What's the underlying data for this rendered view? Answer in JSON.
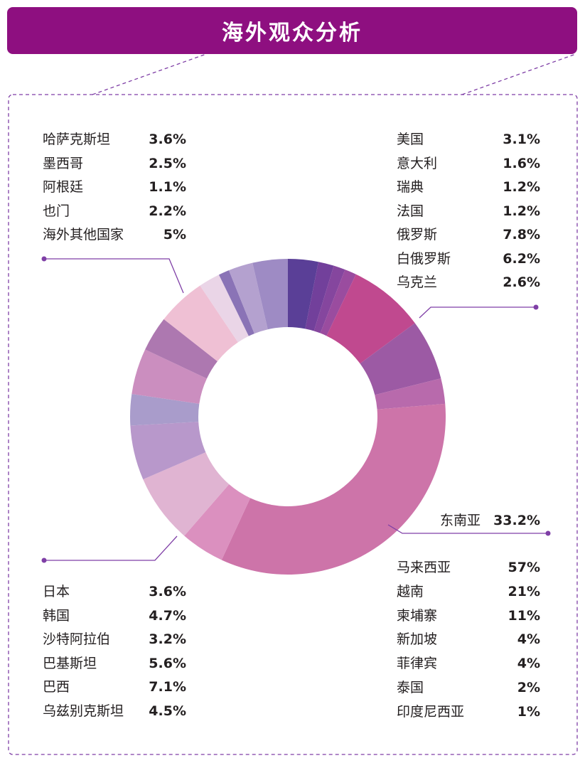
{
  "title": "海外观众分析",
  "colors": {
    "header": "#8e0f80",
    "frame": "#7f3fa6",
    "leader": "#7f3fa6"
  },
  "chart_data": {
    "type": "pie",
    "donut": true,
    "slices": [
      {
        "name": "美国",
        "value": 3.1,
        "color": "#5a3f97"
      },
      {
        "name": "意大利",
        "value": 1.6,
        "color": "#72409b"
      },
      {
        "name": "瑞典",
        "value": 1.2,
        "color": "#85469e"
      },
      {
        "name": "法国",
        "value": 1.2,
        "color": "#9a4c9f"
      },
      {
        "name": "俄罗斯",
        "value": 7.8,
        "color": "#c0498f"
      },
      {
        "name": "白俄罗斯",
        "value": 6.2,
        "color": "#9c5aa4"
      },
      {
        "name": "乌克兰",
        "value": 2.6,
        "color": "#b86aac"
      },
      {
        "name": "东南亚",
        "value": 33.2,
        "color": "#cd74a9"
      },
      {
        "name": "乌兹别克斯坦",
        "value": 4.5,
        "color": "#db90bf"
      },
      {
        "name": "巴西",
        "value": 7.1,
        "color": "#e0b4d2"
      },
      {
        "name": "巴基斯坦",
        "value": 5.6,
        "color": "#b898cb"
      },
      {
        "name": "沙特阿拉伯",
        "value": 3.2,
        "color": "#a99ccb"
      },
      {
        "name": "韩国",
        "value": 4.7,
        "color": "#cb8ebf"
      },
      {
        "name": "日本",
        "value": 3.6,
        "color": "#ad78b0"
      },
      {
        "name": "海外其他国家",
        "value": 5,
        "color": "#efc0d4"
      },
      {
        "name": "也门",
        "value": 2.2,
        "color": "#ead5e7"
      },
      {
        "name": "阿根廷",
        "value": 1.1,
        "color": "#8a73b6"
      },
      {
        "name": "墨西哥",
        "value": 2.5,
        "color": "#b4a1cf"
      },
      {
        "name": "哈萨克斯坦",
        "value": 3.6,
        "color": "#9e8bc4"
      }
    ],
    "southeast_asia_breakdown": [
      {
        "name": "马来西亚",
        "value": 57
      },
      {
        "name": "越南",
        "value": 21
      },
      {
        "name": "柬埔寨",
        "value": 11
      },
      {
        "name": "新加坡",
        "value": 4
      },
      {
        "name": "菲律宾",
        "value": 4
      },
      {
        "name": "泰国",
        "value": 2
      },
      {
        "name": "印度尼西亚",
        "value": 1
      }
    ]
  },
  "legend_top_left": [
    {
      "name": "哈萨克斯坦",
      "value": "3.6%"
    },
    {
      "name": "墨西哥",
      "value": "2.5%"
    },
    {
      "name": "阿根廷",
      "value": "1.1%"
    },
    {
      "name": "也门",
      "value": "2.2%"
    },
    {
      "name": "海外其他国家",
      "value": "5%"
    }
  ],
  "legend_top_right": [
    {
      "name": "美国",
      "value": "3.1%"
    },
    {
      "name": "意大利",
      "value": "1.6%"
    },
    {
      "name": "瑞典",
      "value": "1.2%"
    },
    {
      "name": "法国",
      "value": "1.2%"
    },
    {
      "name": "俄罗斯",
      "value": "7.8%"
    },
    {
      "name": "白俄罗斯",
      "value": "6.2%"
    },
    {
      "name": "乌克兰",
      "value": "2.6%"
    }
  ],
  "legend_bottom_left": [
    {
      "name": "日本",
      "value": "3.6%"
    },
    {
      "name": "韩国",
      "value": "4.7%"
    },
    {
      "name": "沙特阿拉伯",
      "value": "3.2%"
    },
    {
      "name": "巴基斯坦",
      "value": "5.6%"
    },
    {
      "name": "巴西",
      "value": "7.1%"
    },
    {
      "name": "乌兹别克斯坦",
      "value": "4.5%"
    }
  ],
  "southeast_asia_label": {
    "name": "东南亚",
    "value": "33.2%"
  },
  "legend_bottom_right": [
    {
      "name": "马来西亚",
      "value": "57%"
    },
    {
      "name": "越南",
      "value": "21%"
    },
    {
      "name": "柬埔寨",
      "value": "11%"
    },
    {
      "name": "新加坡",
      "value": "4%"
    },
    {
      "name": "菲律宾",
      "value": "4%"
    },
    {
      "name": "泰国",
      "value": "2%"
    },
    {
      "name": "印度尼西亚",
      "value": "1%"
    }
  ]
}
